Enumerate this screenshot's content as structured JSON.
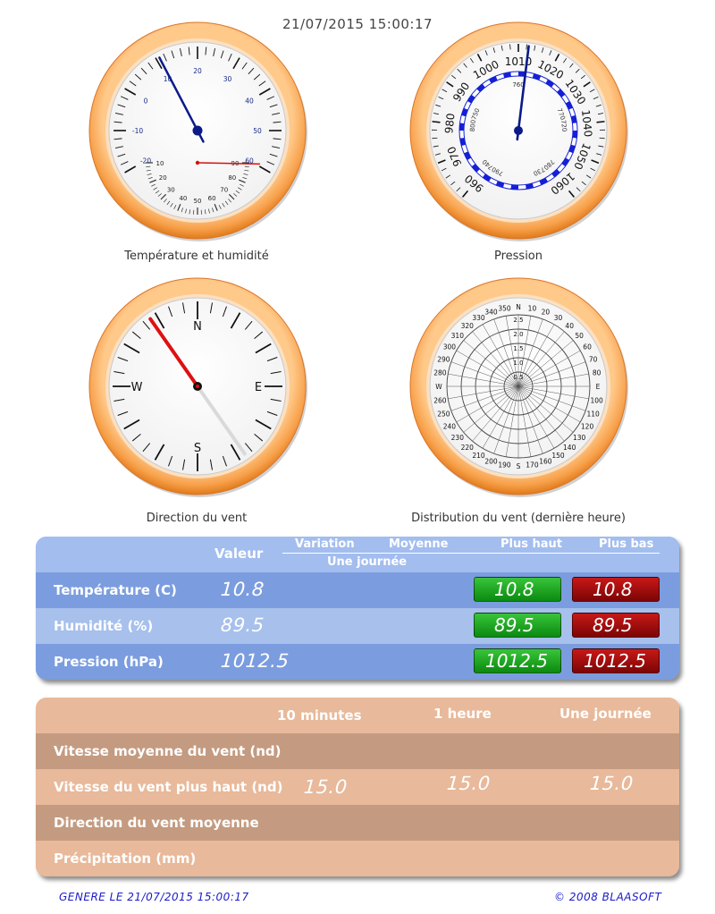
{
  "header": {
    "timestamp": "21/07/2015 15:00:17"
  },
  "gauges": {
    "temperature_humidity": {
      "caption": "Température et humidité",
      "temp_scale": [
        "-20",
        "-10",
        "0",
        "10",
        "20",
        "30",
        "40",
        "50",
        "60"
      ],
      "humidity_scale": [
        "90",
        "80",
        "70",
        "60",
        "50",
        "40",
        "30",
        "20",
        "10"
      ],
      "temperature_value": 10.8,
      "humidity_value": 89.5
    },
    "pressure": {
      "caption": "Pression",
      "hpa_scale": [
        "960",
        "970",
        "980",
        "990",
        "1000",
        "1010",
        "1020",
        "1030",
        "1040",
        "1050",
        "1060"
      ],
      "mmhg_scale": [
        "720",
        "730",
        "740",
        "750",
        "760",
        "770",
        "780",
        "790",
        "800"
      ],
      "value": 1012.5
    },
    "wind_direction": {
      "caption": "Direction du vent",
      "cardinals": {
        "n": "N",
        "e": "E",
        "s": "S",
        "w": "W"
      },
      "direction_degrees": 325
    },
    "wind_distribution": {
      "caption": "Distribution du vent (dernière heure)",
      "angles": [
        "N",
        "10",
        "20",
        "30",
        "40",
        "50",
        "60",
        "70",
        "80",
        "E",
        "100",
        "110",
        "120",
        "130",
        "140",
        "150",
        "160",
        "170",
        "S",
        "190",
        "200",
        "210",
        "220",
        "230",
        "240",
        "250",
        "260",
        "W",
        "280",
        "290",
        "300",
        "310",
        "320",
        "330",
        "340",
        "350"
      ],
      "radii": [
        "0.5",
        "1.0",
        "1.5",
        "2.0",
        "2.5"
      ]
    }
  },
  "stats_table": {
    "headers": {
      "value": "Valeur",
      "variation": "Variation",
      "average": "Moyenne",
      "high": "Plus haut",
      "low": "Plus bas",
      "period": "Une journée"
    },
    "rows": [
      {
        "label": "Température (C)",
        "value": "10.8",
        "high": "10.8",
        "low": "10.8"
      },
      {
        "label": "Humidité (%)",
        "value": "89.5",
        "high": "89.5",
        "low": "89.5"
      },
      {
        "label": "Pression (hPa)",
        "value": "1012.5",
        "high": "1012.5",
        "low": "1012.5"
      }
    ]
  },
  "wind_table": {
    "headers": {
      "ten_minutes": "10 minutes",
      "one_hour": "1 heure",
      "one_day": "Une journée"
    },
    "rows": [
      {
        "label": "Vitesse moyenne du vent (nd)",
        "ten_minutes": "",
        "one_hour": "",
        "one_day": ""
      },
      {
        "label": "Vitesse du vent plus haut (nd)",
        "ten_minutes": "15.0",
        "one_hour": "15.0",
        "one_day": "15.0"
      },
      {
        "label": "Direction du vent moyenne",
        "ten_minutes": "",
        "one_hour": "",
        "one_day": ""
      },
      {
        "label": "Précipitation (mm)",
        "ten_minutes": "",
        "one_hour": "",
        "one_day": ""
      }
    ]
  },
  "footer": {
    "generated": "Genere le 21/07/2015 15:00:17",
    "copyright": "© 2008 Blaasoft"
  },
  "colors": {
    "gauge_rim": "#f7a04a",
    "stats_panel": "#7b9ddf",
    "stats_panel_alt": "#a7c0ec",
    "wind_panel": "#c49b80",
    "wind_panel_alt": "#e8b99a",
    "high_badge": "#1aa51e",
    "low_badge": "#a50f0f",
    "needle_temp": "#0a1a8a",
    "needle_humidity": "#d61010",
    "needle_wind": "#e01010"
  }
}
